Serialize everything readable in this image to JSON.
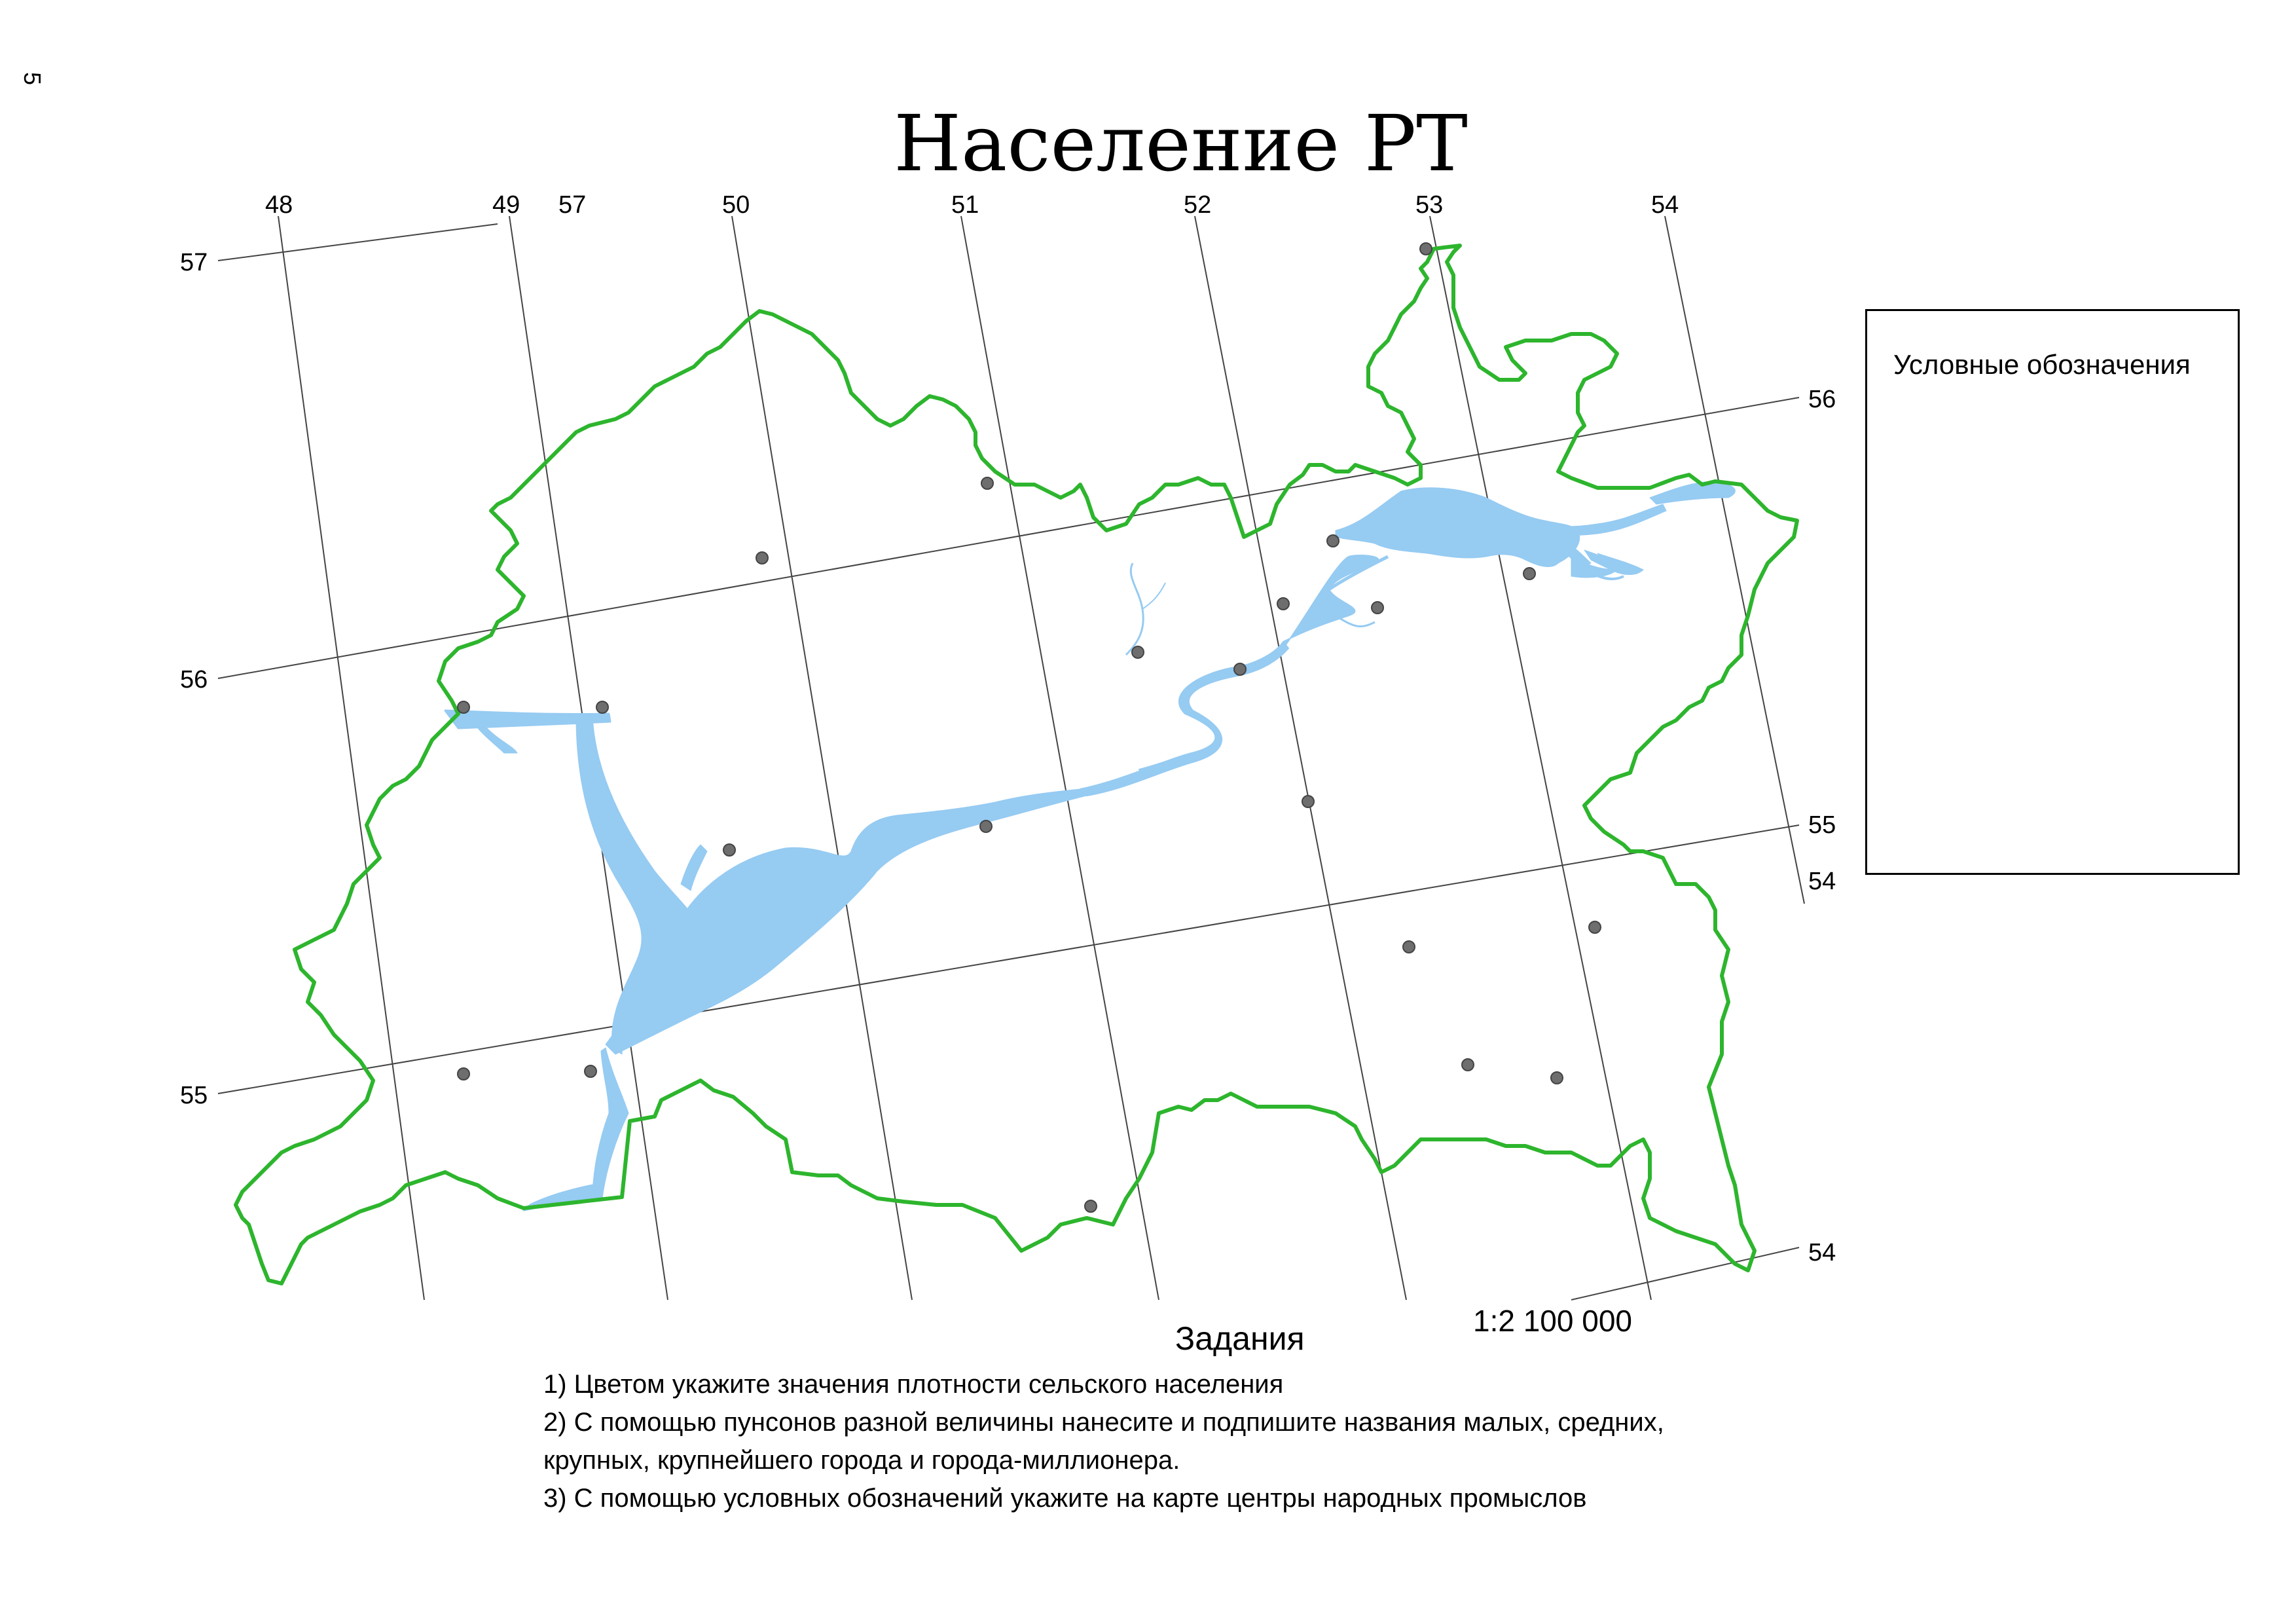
{
  "page_number": "5",
  "title": "Население РТ",
  "graticule": {
    "top_labels": [
      "48",
      "49",
      "57",
      "50",
      "51",
      "52",
      "53",
      "54"
    ],
    "left_labels": [
      "57",
      "56",
      "55"
    ],
    "right_labels": [
      "56",
      "55",
      "54",
      "54"
    ]
  },
  "legend": {
    "title": "Условные обозначения"
  },
  "scale": "1:2 100 000",
  "tasks": {
    "heading": "Задания",
    "items": [
      "1) Цветом укажите значения плотности сельского населения",
      "2) С помощью пунсонов разной величины нанесите и подпишите названия малых, средних,",
      "крупных, крупнейшего города и города-миллионера.",
      "3) С помощью условных обозначений укажите на карте центры народных промыслов"
    ]
  },
  "colors": {
    "border": "#2db52d",
    "water": "#96cbf2",
    "grid": "#444444",
    "city": "#6e6e6e"
  },
  "map_features": {
    "region_border": "green outline of the Republic of Tatarstan",
    "rivers": "Volga, Kama reservoirs in light blue",
    "city_dot_count": 21
  }
}
